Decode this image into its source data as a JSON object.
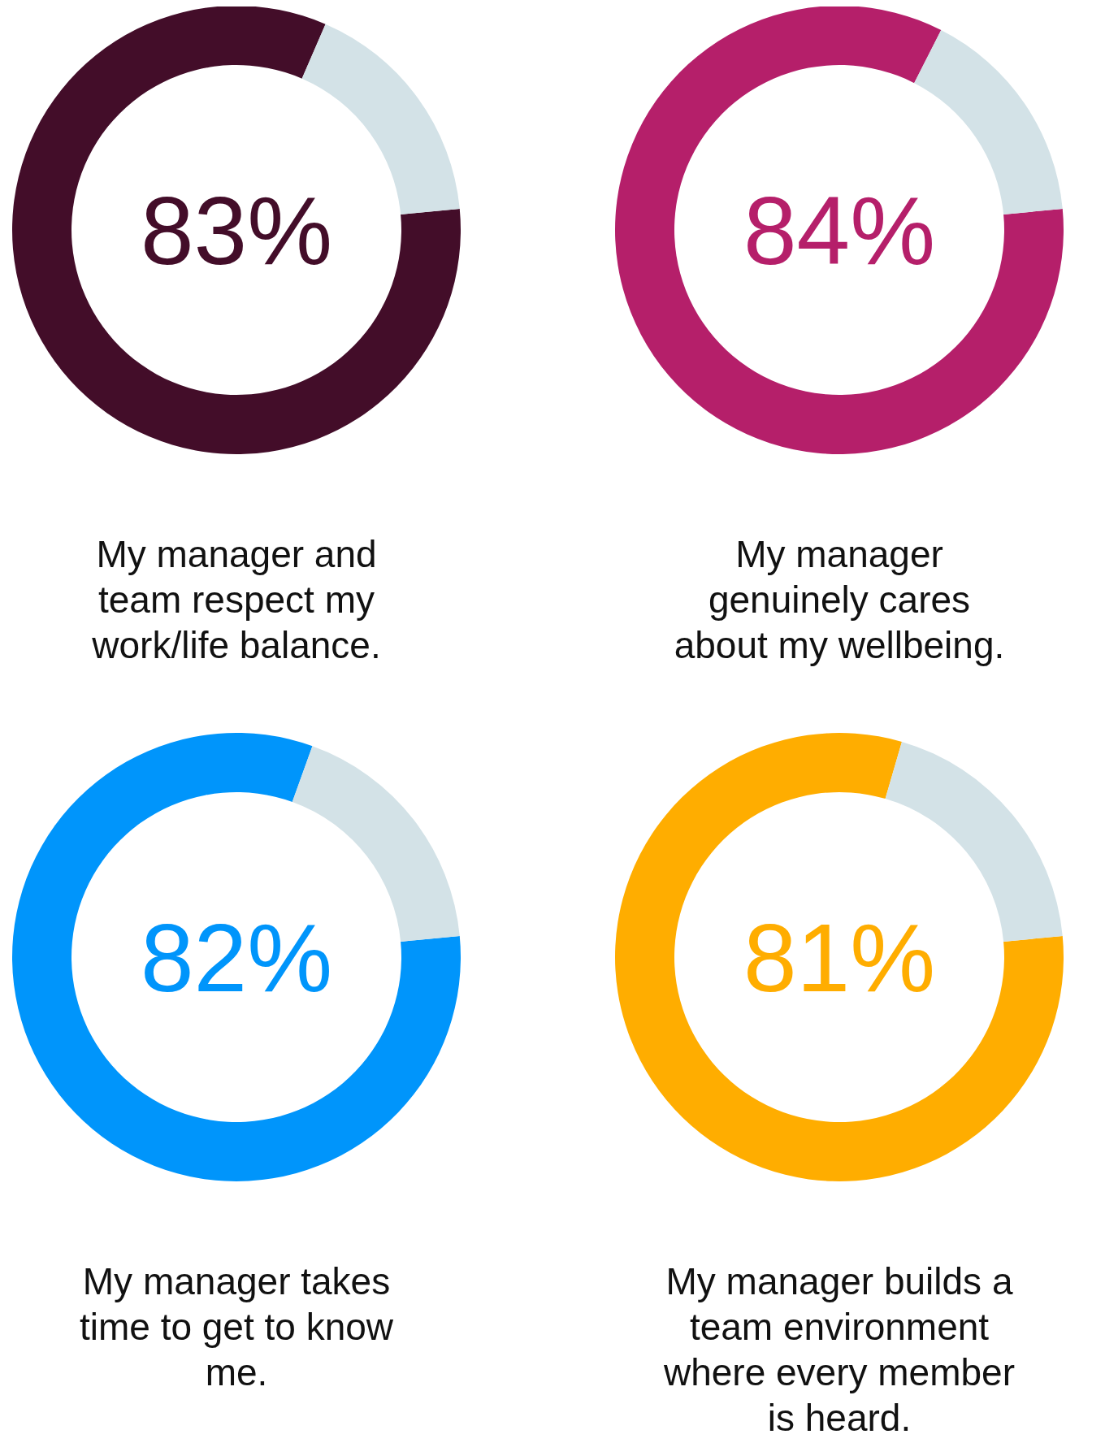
{
  "chart_data": [
    {
      "type": "donut",
      "title": "My manager and team respect my work/life balance.",
      "categories": [
        null,
        null
      ],
      "values": [
        83,
        17
      ],
      "colors": [
        "#430d29",
        "#d3e2e7"
      ],
      "value_labels": [
        "83%",
        null
      ]
    },
    {
      "type": "donut",
      "title": "My manager genuinely cares about my wellbeing.",
      "categories": [
        null,
        null
      ],
      "values": [
        84,
        16
      ],
      "colors": [
        "#b51f6a",
        "#d3e2e7"
      ],
      "value_labels": [
        "84%",
        null
      ]
    },
    {
      "type": "donut",
      "title": "My manager takes time to get to know me.",
      "categories": [
        null,
        null
      ],
      "values": [
        82,
        18
      ],
      "colors": [
        "#0095fb",
        "#d3e2e7"
      ],
      "value_labels": [
        "82%",
        null
      ]
    },
    {
      "type": "donut",
      "title": "My manager builds a team environment where every member is heard.",
      "categories": [
        null,
        null
      ],
      "values": [
        81,
        19
      ],
      "colors": [
        "#ffad00",
        "#d3e2e7"
      ],
      "value_labels": [
        "81%",
        null
      ]
    }
  ]
}
